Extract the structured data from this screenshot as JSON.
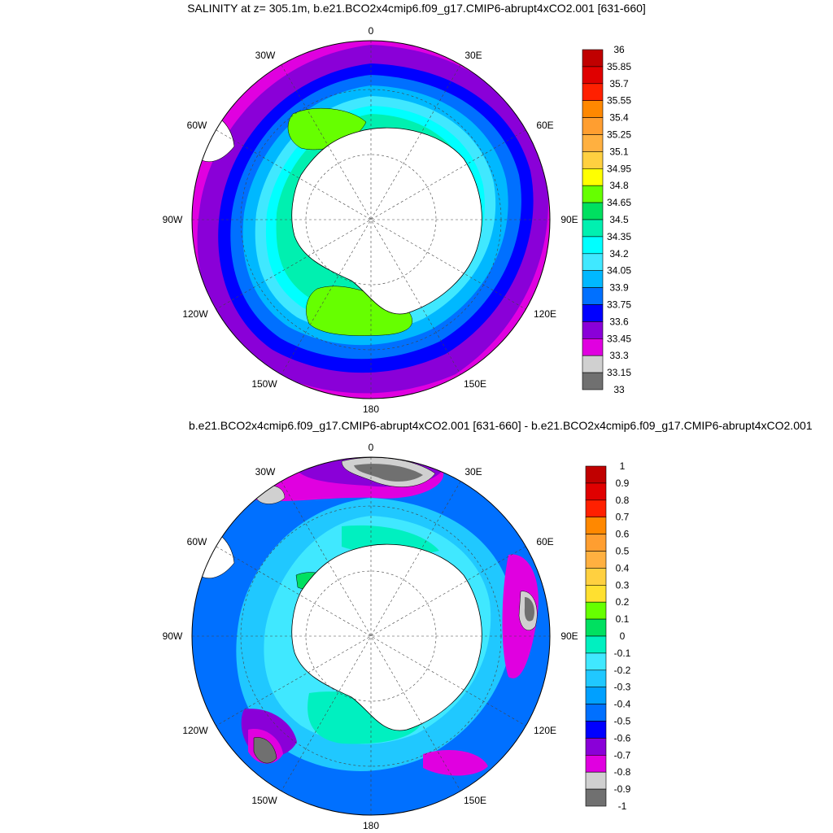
{
  "panels": [
    {
      "title": "SALINITY at z= 305.1m, b.e21.BCO2x4cmip6.f09_g17.CMIP6-abrupt4xCO2.001 [631-660]",
      "lon_labels": [
        "0",
        "30E",
        "60E",
        "90E",
        "120E",
        "150E",
        "180",
        "150W",
        "120W",
        "90W",
        "60W",
        "30W"
      ],
      "colorbar": {
        "labels": [
          "36",
          "35.85",
          "35.7",
          "35.55",
          "35.4",
          "35.25",
          "35.1",
          "34.95",
          "34.8",
          "34.65",
          "34.5",
          "34.35",
          "34.2",
          "34.05",
          "33.9",
          "33.75",
          "33.6",
          "33.45",
          "33.3",
          "33.15",
          "33"
        ],
        "colors": [
          "#c00000",
          "#e00000",
          "#ff2000",
          "#ff8800",
          "#ff9e30",
          "#ffb040",
          "#ffd040",
          "#ffff00",
          "#66ff00",
          "#00e060",
          "#00f0b0",
          "#00ffff",
          "#40e8ff",
          "#00b8ff",
          "#0070ff",
          "#0000ff",
          "#8a00d8",
          "#e000e0",
          "#d0d0d0",
          "#707070"
        ]
      }
    },
    {
      "title": "b.e21.BCO2x4cmip6.f09_g17.CMIP6-abrupt4xCO2.001 [631-660] - b.e21.BCO2x4cmip6.f09_g17.CMIP6-abrupt4xCO2.001",
      "lon_labels": [
        "0",
        "30E",
        "60E",
        "90E",
        "120E",
        "150E",
        "180",
        "150W",
        "120W",
        "90W",
        "60W",
        "30W"
      ],
      "colorbar": {
        "labels": [
          "1",
          "0.9",
          "0.8",
          "0.7",
          "0.6",
          "0.5",
          "0.4",
          "0.3",
          "0.2",
          "0.1",
          "0",
          "-0.1",
          "-0.2",
          "-0.3",
          "-0.4",
          "-0.5",
          "-0.6",
          "-0.7",
          "-0.8",
          "-0.9",
          "-1"
        ],
        "colors": [
          "#c00000",
          "#e00000",
          "#ff2000",
          "#ff8800",
          "#ff9e30",
          "#ffb040",
          "#ffd040",
          "#ffe030",
          "#66ff00",
          "#00e060",
          "#00f0c0",
          "#40e8ff",
          "#20c8ff",
          "#00a0ff",
          "#0070ff",
          "#0000ff",
          "#8a00d8",
          "#e000e0",
          "#d0d0d0",
          "#707070"
        ]
      }
    }
  ]
}
